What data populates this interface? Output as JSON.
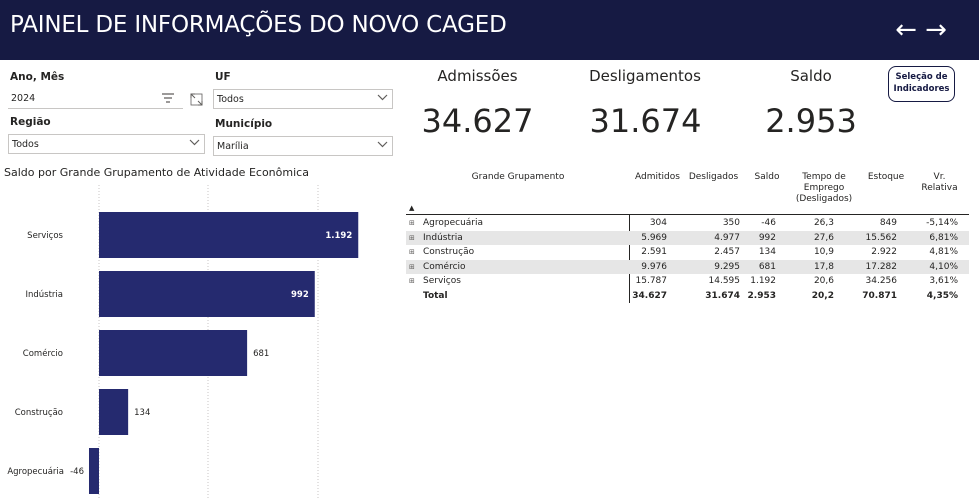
{
  "header": {
    "title": "PAINEL DE INFORMAÇÕES DO NOVO CAGED",
    "back_icon": "←",
    "forward_icon": "→"
  },
  "filters": {
    "ano_mes": {
      "label": "Ano, Mês",
      "value": "2024"
    },
    "uf": {
      "label": "UF",
      "value": "Todos"
    },
    "regiao": {
      "label": "Região",
      "value": "Todos"
    },
    "municipio": {
      "label": "Município",
      "value": "Marília"
    }
  },
  "kpis": [
    {
      "title": "Admissões",
      "value": "34.627"
    },
    {
      "title": "Desligamentos",
      "value": "31.674"
    },
    {
      "title": "Saldo",
      "value": "2.953"
    }
  ],
  "selection_button": {
    "line1": "Seleção de",
    "line2": "Indicadores"
  },
  "chart_title": "Saldo por Grande Grupamento de Atividade Econômica",
  "chart_data": {
    "type": "bar",
    "orientation": "horizontal",
    "categories": [
      "Serviços",
      "Indústria",
      "Comércio",
      "Construção",
      "Agropecuária"
    ],
    "values": [
      1192,
      992,
      681,
      134,
      -46
    ],
    "labels": [
      "1.192",
      "992",
      "681",
      "134",
      "-46"
    ],
    "bar_color": "#252a6f",
    "grid": true,
    "title": "Saldo por Grande Grupamento de Atividade Econômica"
  },
  "table": {
    "headers": {
      "grupo": "Grande Grupamento",
      "admitidos": "Admitidos",
      "desligados": "Desligados",
      "saldo": "Saldo",
      "tempo_l1": "Tempo de",
      "tempo_l2": "Emprego",
      "tempo_l3": "(Desligados)",
      "estoque": "Estoque",
      "vr_l1": "Vr.",
      "vr_l2": "Relativa"
    },
    "sort_icon": "▲",
    "expand_icon": "⊞",
    "rows": [
      {
        "grupo": "Agropecuária",
        "admitidos": "304",
        "desligados": "350",
        "saldo": "-46",
        "tempo": "26,3",
        "estoque": "849",
        "vr": "-5,14%"
      },
      {
        "grupo": "Indústria",
        "admitidos": "5.969",
        "desligados": "4.977",
        "saldo": "992",
        "tempo": "27,6",
        "estoque": "15.562",
        "vr": "6,81%"
      },
      {
        "grupo": "Construção",
        "admitidos": "2.591",
        "desligados": "2.457",
        "saldo": "134",
        "tempo": "10,9",
        "estoque": "2.922",
        "vr": "4,81%"
      },
      {
        "grupo": "Comércio",
        "admitidos": "9.976",
        "desligados": "9.295",
        "saldo": "681",
        "tempo": "17,8",
        "estoque": "17.282",
        "vr": "4,10%"
      },
      {
        "grupo": "Serviços",
        "admitidos": "15.787",
        "desligados": "14.595",
        "saldo": "1.192",
        "tempo": "20,6",
        "estoque": "34.256",
        "vr": "3,61%"
      }
    ],
    "total": {
      "grupo": "Total",
      "admitidos": "34.627",
      "desligados": "31.674",
      "saldo": "2.953",
      "tempo": "20,2",
      "estoque": "70.871",
      "vr": "4,35%"
    }
  }
}
